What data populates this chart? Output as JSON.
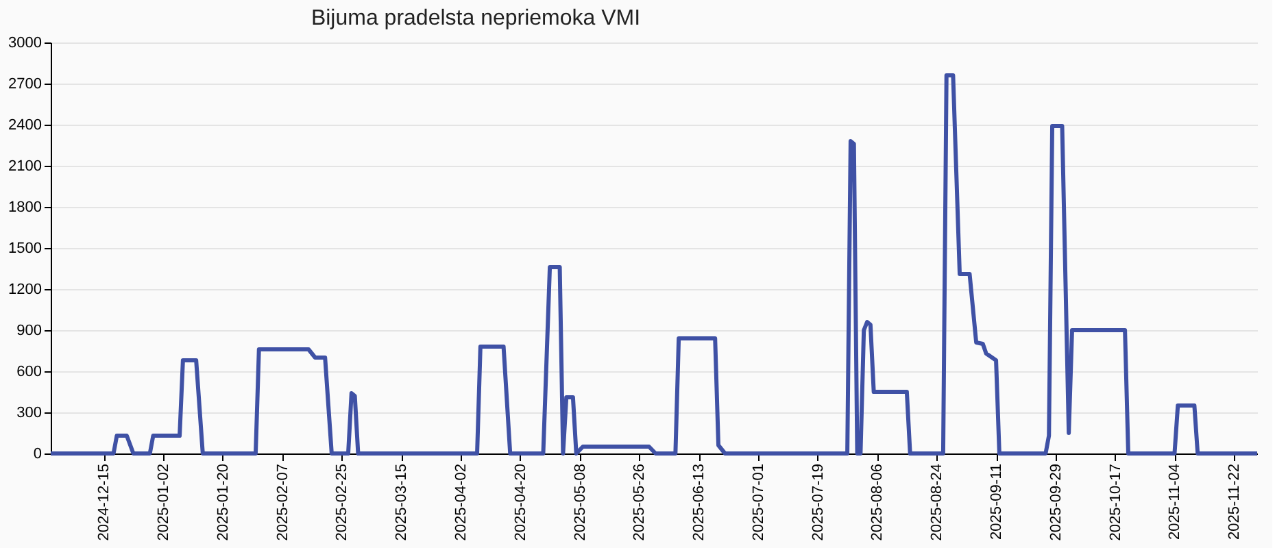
{
  "chart_data": {
    "type": "line",
    "title": "Bijuma pradelsta nepriemoka VMI",
    "x": [
      "2024-11-29",
      "2024-12-18",
      "2024-12-19",
      "2024-12-22",
      "2024-12-24",
      "2024-12-29",
      "2024-12-30",
      "2025-01-07",
      "2025-01-08",
      "2025-01-12",
      "2025-01-14",
      "2025-01-30",
      "2025-01-31",
      "2025-02-15",
      "2025-02-17",
      "2025-02-20",
      "2025-02-22",
      "2025-02-27",
      "2025-02-28",
      "2025-03-01",
      "2025-03-02",
      "2025-04-07",
      "2025-04-08",
      "2025-04-15",
      "2025-04-17",
      "2025-04-27",
      "2025-04-29",
      "2025-05-02",
      "2025-05-03",
      "2025-05-04",
      "2025-05-06",
      "2025-05-07",
      "2025-05-09",
      "2025-05-29",
      "2025-05-31",
      "2025-06-06",
      "2025-06-07",
      "2025-06-18",
      "2025-06-19",
      "2025-06-21",
      "2025-07-28",
      "2025-07-29",
      "2025-07-30",
      "2025-07-31",
      "2025-08-01",
      "2025-08-02",
      "2025-08-03",
      "2025-08-04",
      "2025-08-05",
      "2025-08-15",
      "2025-08-16",
      "2025-08-26",
      "2025-08-27",
      "2025-08-29",
      "2025-08-31",
      "2025-09-03",
      "2025-09-05",
      "2025-09-07",
      "2025-09-08",
      "2025-09-11",
      "2025-09-12",
      "2025-09-26",
      "2025-09-27",
      "2025-09-28",
      "2025-10-01",
      "2025-10-03",
      "2025-10-04",
      "2025-10-20",
      "2025-10-21",
      "2025-11-04",
      "2025-11-05",
      "2025-11-10",
      "2025-11-11",
      "2025-11-29"
    ],
    "series": [
      {
        "color": "#3f51a5",
        "values": [
          0,
          0,
          130,
          130,
          0,
          0,
          130,
          130,
          680,
          680,
          0,
          0,
          760,
          760,
          700,
          700,
          0,
          0,
          440,
          420,
          0,
          0,
          780,
          780,
          0,
          0,
          1360,
          1360,
          0,
          410,
          410,
          0,
          50,
          50,
          0,
          0,
          840,
          840,
          60,
          0,
          0,
          2280,
          2260,
          0,
          0,
          900,
          960,
          940,
          450,
          450,
          0,
          0,
          2760,
          2760,
          1310,
          1310,
          810,
          800,
          730,
          680,
          0,
          0,
          130,
          2390,
          2390,
          150,
          900,
          900,
          0,
          0,
          350,
          350,
          0,
          0
        ]
      }
    ],
    "xlim": [
      "2024-11-29",
      "2025-11-29"
    ],
    "xticks": [
      "2024-12-15",
      "2025-01-02",
      "2025-01-20",
      "2025-02-07",
      "2025-02-25",
      "2025-03-15",
      "2025-04-02",
      "2025-04-20",
      "2025-05-08",
      "2025-05-26",
      "2025-06-13",
      "2025-07-01",
      "2025-07-19",
      "2025-08-06",
      "2025-08-24",
      "2025-09-11",
      "2025-09-29",
      "2025-10-17",
      "2025-11-04",
      "2025-11-22"
    ],
    "ylim": [
      0,
      3000
    ],
    "yticks": [
      0,
      300,
      600,
      900,
      1200,
      1500,
      1800,
      2100,
      2400,
      2700,
      3000
    ],
    "grid": "y",
    "marker": "none",
    "line_style": "solid"
  }
}
